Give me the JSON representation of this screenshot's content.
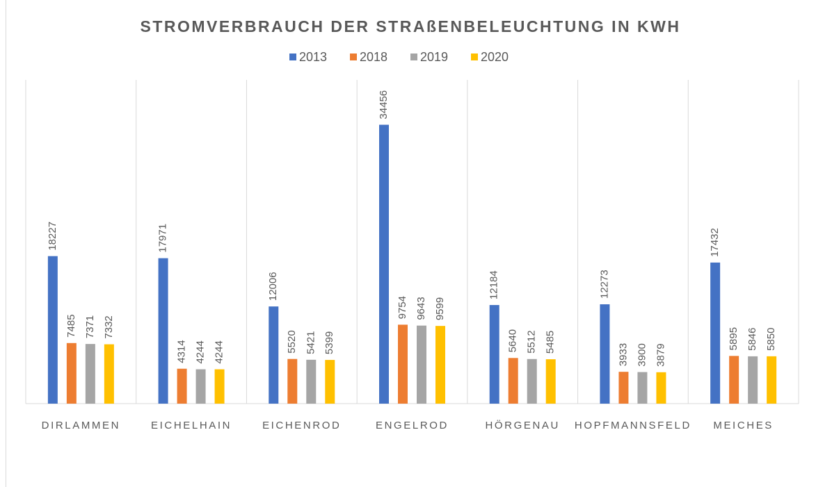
{
  "chart_data": {
    "type": "bar",
    "title": "STROMVERBRAUCH DER STRAßENBELEUCHTUNG IN KWH",
    "categories": [
      "DIRLAMMEN",
      "EICHELHAIN",
      "EICHENROD",
      "ENGELROD",
      "HÖRGENAU",
      "HOPFMANNSFELD",
      "MEICHES"
    ],
    "series": [
      {
        "name": "2013",
        "color": "#4472c4",
        "values": [
          18227,
          17971,
          12006,
          34456,
          12184,
          12273,
          17432
        ]
      },
      {
        "name": "2018",
        "color": "#ed7d31",
        "values": [
          7485,
          4314,
          5520,
          9754,
          5640,
          3933,
          5895
        ]
      },
      {
        "name": "2019",
        "color": "#a5a5a5",
        "values": [
          7371,
          4244,
          5421,
          9643,
          5512,
          3900,
          5846
        ]
      },
      {
        "name": "2020",
        "color": "#ffc000",
        "values": [
          7332,
          4244,
          5399,
          9599,
          5485,
          3879,
          5850
        ]
      }
    ],
    "ylim": [
      0,
      40000
    ],
    "legend": "top"
  }
}
